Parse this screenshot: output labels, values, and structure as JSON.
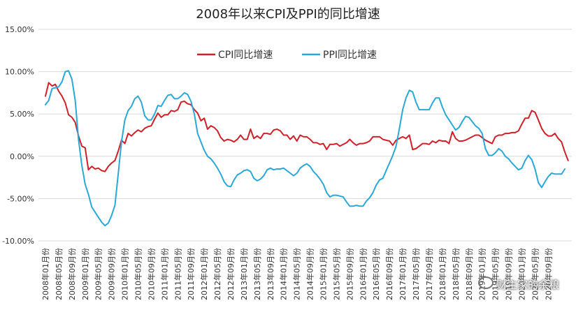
{
  "chart_data": {
    "type": "line",
    "title": "2008年以来CPI及PPI的同比增速",
    "ylim": [
      -10,
      15
    ],
    "yticks": [
      "-10.00%",
      "-5.00%",
      "0.00%",
      "5.00%",
      "10.00%",
      "15.00%"
    ],
    "grid": "horizontal",
    "legend_position": "top-center",
    "x_labels": [
      "2008年01月份",
      "2008年05月份",
      "2008年09月份",
      "2009年01月份",
      "2009年05月份",
      "2009年09月份",
      "2010年01月份",
      "2010年05月份",
      "2010年09月份",
      "2011年01月份",
      "2011年05月份",
      "2011年09月份",
      "2012年01月份",
      "2012年05月份",
      "2012年09月份",
      "2013年01月份",
      "2013年05月份",
      "2013年09月份",
      "2014年01月份",
      "2014年05月份",
      "2014年09月份",
      "2015年01月份",
      "2015年05月份",
      "2015年09月份",
      "2016年01月份",
      "2016年05月份",
      "2016年09月份",
      "2017年01月份",
      "2017年05月份",
      "2017年09月份",
      "2018年01月份",
      "2018年05月份",
      "2018年09月份",
      "2019年01月份",
      "2019年05月份",
      "2019年09月份",
      "2020年01月份",
      "2020年05月份",
      "2020年09月份"
    ],
    "series": [
      {
        "name": "CPI同比增速",
        "color": "#d0202a",
        "values": [
          7.1,
          8.7,
          8.3,
          8.5,
          7.7,
          7.1,
          6.3,
          4.9,
          4.6,
          4.0,
          2.4,
          1.2,
          1.0,
          -1.6,
          -1.2,
          -1.5,
          -1.4,
          -1.7,
          -1.8,
          -1.2,
          -0.8,
          -0.5,
          0.6,
          1.9,
          1.5,
          2.7,
          2.4,
          2.8,
          3.1,
          2.9,
          3.3,
          3.5,
          3.6,
          4.4,
          5.1,
          4.6,
          4.9,
          4.9,
          5.4,
          5.3,
          5.5,
          6.4,
          6.5,
          6.2,
          6.1,
          5.5,
          5.1,
          4.2,
          4.5,
          3.2,
          3.6,
          3.4,
          3.0,
          2.2,
          1.8,
          2.0,
          1.9,
          1.7,
          2.0,
          2.5,
          2.0,
          2.0,
          3.2,
          2.1,
          2.4,
          2.1,
          2.7,
          2.7,
          2.6,
          3.1,
          3.2,
          3.0,
          2.5,
          2.5,
          2.0,
          2.4,
          1.8,
          2.5,
          2.3,
          2.3,
          2.0,
          1.6,
          1.6,
          1.4,
          1.5,
          0.8,
          1.4,
          1.4,
          1.5,
          1.2,
          1.4,
          1.6,
          2.0,
          1.6,
          1.3,
          1.5,
          1.5,
          1.6,
          1.8,
          2.3,
          2.3,
          2.3,
          2.0,
          1.9,
          1.8,
          1.3,
          1.9,
          2.1,
          2.3,
          2.1,
          2.5,
          0.8,
          0.9,
          1.2,
          1.5,
          1.5,
          1.4,
          1.8,
          1.6,
          1.9,
          1.8,
          1.8,
          1.5,
          2.9,
          2.1,
          1.8,
          1.8,
          1.9,
          2.1,
          2.3,
          2.5,
          2.5,
          2.2,
          1.9,
          1.7,
          1.5,
          2.3,
          2.5,
          2.5,
          2.7,
          2.7,
          2.8,
          2.8,
          3.0,
          3.8,
          4.5,
          4.5,
          5.4,
          5.2,
          4.3,
          3.3,
          2.7,
          2.4,
          2.4,
          2.7,
          2.1,
          1.7,
          0.5,
          -0.5
        ],
        "show_every": 1
      },
      {
        "name": "PPI同比增速",
        "color": "#2aa8d8",
        "values": [
          6.1,
          6.6,
          8.0,
          8.1,
          8.2,
          8.8,
          10.0,
          10.1,
          9.1,
          6.6,
          2.0,
          -1.1,
          -3.3,
          -4.5,
          -6.0,
          -6.6,
          -7.2,
          -7.8,
          -8.2,
          -7.9,
          -7.0,
          -5.8,
          -2.1,
          1.7,
          4.3,
          5.4,
          5.9,
          6.8,
          7.1,
          6.4,
          4.8,
          4.3,
          4.3,
          5.0,
          6.0,
          5.9,
          6.6,
          7.2,
          7.3,
          6.8,
          6.8,
          7.1,
          7.5,
          7.3,
          6.5,
          5.0,
          2.7,
          1.7,
          0.7,
          0.0,
          -0.3,
          -0.8,
          -1.4,
          -2.1,
          -3.0,
          -3.5,
          -3.6,
          -2.8,
          -2.2,
          -2.0,
          -1.7,
          -1.6,
          -1.8,
          -2.6,
          -2.9,
          -2.7,
          -2.3,
          -1.6,
          -1.4,
          -1.6,
          -1.5,
          -1.5,
          -1.4,
          -1.7,
          -2.0,
          -2.3,
          -2.0,
          -1.4,
          -1.1,
          -0.9,
          -1.2,
          -1.8,
          -2.2,
          -2.7,
          -3.3,
          -4.3,
          -4.8,
          -4.6,
          -4.6,
          -4.7,
          -4.8,
          -5.4,
          -5.9,
          -5.9,
          -5.8,
          -5.9,
          -5.9,
          -5.3,
          -4.9,
          -4.3,
          -3.4,
          -2.8,
          -2.6,
          -1.7,
          -0.8,
          0.1,
          1.2,
          3.3,
          5.5,
          6.9,
          7.8,
          7.6,
          6.4,
          5.5,
          5.5,
          5.5,
          5.5,
          6.3,
          6.9,
          6.9,
          5.8,
          4.9,
          4.3,
          3.7,
          3.1,
          3.4,
          4.1,
          4.7,
          4.6,
          4.1,
          3.6,
          3.3,
          2.7,
          0.9,
          0.1,
          0.1,
          0.4,
          0.9,
          0.6,
          0.0,
          -0.3,
          -0.8,
          -1.2,
          -1.6,
          -1.4,
          -0.5,
          0.1,
          -0.4,
          -1.5,
          -3.1,
          -3.7,
          -3.0,
          -2.4,
          -2.0,
          -2.1,
          -2.1,
          -2.1,
          -1.5
        ]
      }
    ]
  },
  "watermark": "财主家的余粮"
}
